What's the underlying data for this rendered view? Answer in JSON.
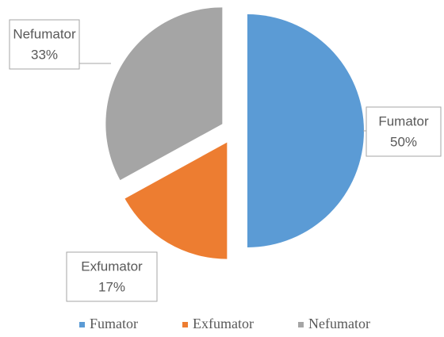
{
  "chart_data": {
    "type": "pie",
    "categories": [
      "Fumator",
      "Exfumator",
      "Nefumator"
    ],
    "values": [
      50,
      17,
      33
    ],
    "value_labels": [
      "50%",
      "17%",
      "33%"
    ],
    "colors": [
      "#5b9bd5",
      "#ed7d31",
      "#a5a5a5"
    ],
    "legend": "bottom"
  }
}
